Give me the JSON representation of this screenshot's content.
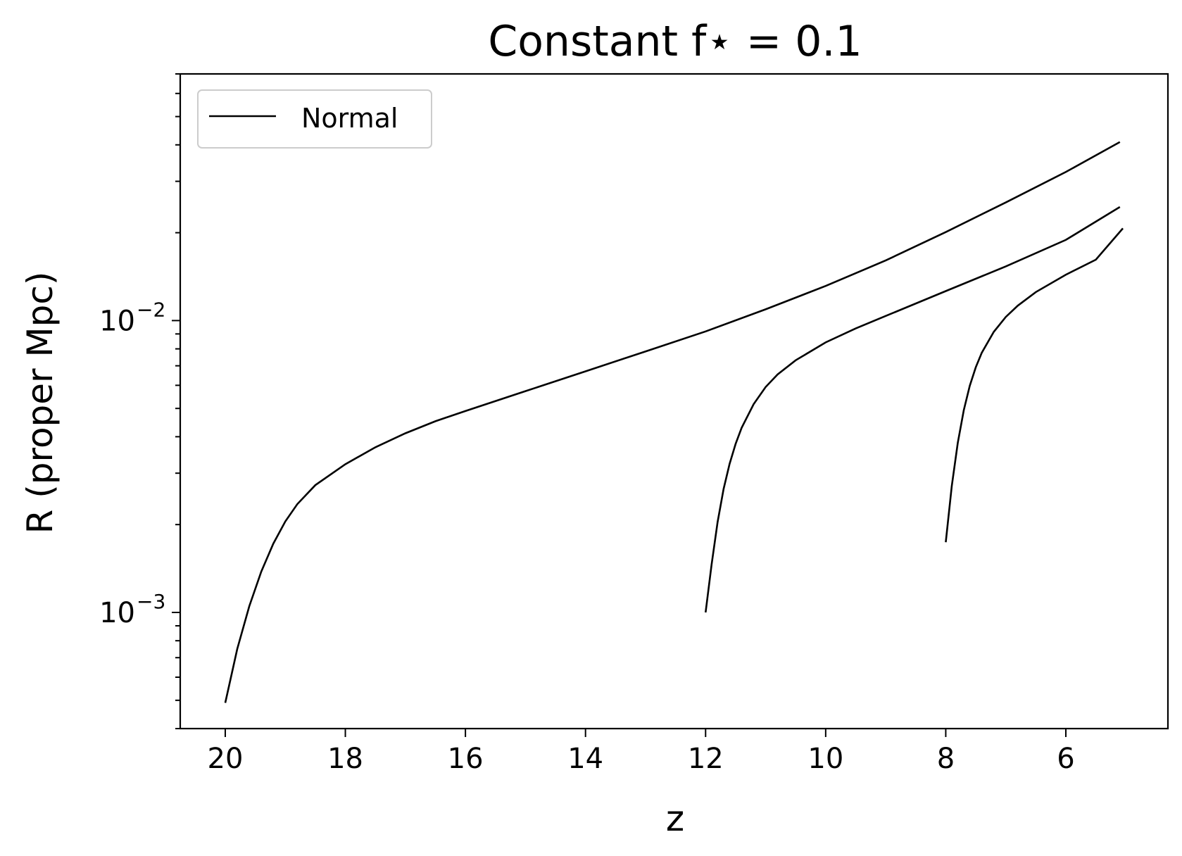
{
  "chart_data": {
    "type": "line",
    "title": "Constant f⋆ = 0.1",
    "xlabel": "z",
    "ylabel": "R (proper Mpc)",
    "x_inverted": true,
    "xlim": [
      20.75,
      4.3
    ],
    "ylim": [
      0.0004,
      0.07
    ],
    "yscale": "log",
    "grid": false,
    "legend_position": "top-left",
    "x_ticks": [
      20,
      18,
      16,
      14,
      12,
      10,
      8,
      6
    ],
    "x_tick_labels": [
      "20",
      "18",
      "16",
      "14",
      "12",
      "10",
      "8",
      "6"
    ],
    "y_ticks": [
      0.001,
      0.01
    ],
    "y_tick_labels": [
      {
        "base": "10",
        "exp": "−3"
      },
      {
        "base": "10",
        "exp": "−2"
      }
    ],
    "line_color": "#000000",
    "legend": [
      {
        "label": "Normal",
        "color": "#000000"
      }
    ],
    "series": [
      {
        "x": [
          20,
          19.8,
          19.6,
          19.4,
          19.2,
          19.0,
          18.8,
          18.5,
          18.0,
          17.5,
          17.0,
          16.5,
          16.0,
          15.0,
          14.0,
          13.0,
          12.0,
          11.0,
          10.0,
          9.0,
          8.0,
          7.0,
          6.0,
          5.1
        ],
        "y": [
          0.00049,
          0.00075,
          0.00105,
          0.00138,
          0.00172,
          0.00205,
          0.00235,
          0.00273,
          0.00322,
          0.00368,
          0.00411,
          0.00452,
          0.0049,
          0.00573,
          0.0067,
          0.00784,
          0.00918,
          0.01093,
          0.01314,
          0.01607,
          0.0201,
          0.0254,
          0.0323,
          0.0409
        ]
      },
      {
        "x": [
          12.0,
          11.9,
          11.8,
          11.7,
          11.6,
          11.5,
          11.4,
          11.2,
          11.0,
          10.8,
          10.5,
          10.0,
          9.5,
          9.0,
          8.0,
          7.0,
          6.0,
          5.1
        ],
        "y": [
          0.001,
          0.00146,
          0.00204,
          0.00265,
          0.00323,
          0.00378,
          0.00429,
          0.00517,
          0.00592,
          0.00654,
          0.00731,
          0.00842,
          0.0094,
          0.01037,
          0.01262,
          0.01533,
          0.0189,
          0.0245
        ]
      },
      {
        "x": [
          8.0,
          7.9,
          7.8,
          7.7,
          7.6,
          7.5,
          7.4,
          7.2,
          7.0,
          6.8,
          6.5,
          6.0,
          5.5,
          5.05
        ],
        "y": [
          0.00174,
          0.00271,
          0.00381,
          0.00493,
          0.00598,
          0.00692,
          0.00776,
          0.00915,
          0.01029,
          0.01125,
          0.01252,
          0.01436,
          0.01617,
          0.0207
        ]
      }
    ]
  }
}
